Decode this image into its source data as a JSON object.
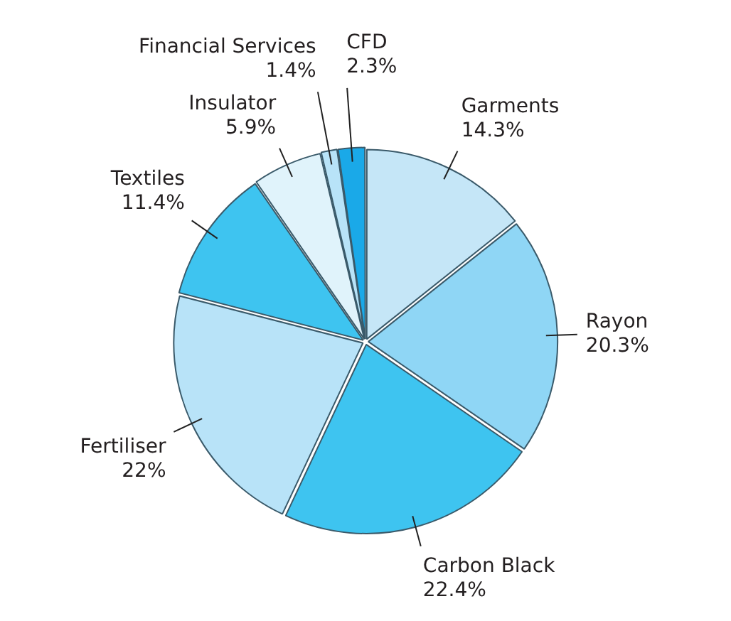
{
  "chart_data": {
    "type": "pie",
    "categories": [
      "Garments",
      "Rayon",
      "Carbon Black",
      "Fertiliser",
      "Textiles",
      "Insulator",
      "Financial Services",
      "CFD"
    ],
    "values": [
      14.3,
      20.3,
      22.4,
      22,
      11.4,
      5.9,
      1.4,
      2.3
    ],
    "value_labels": [
      "14.3%",
      "20.3%",
      "22.4%",
      "22%",
      "11.4%",
      "5.9%",
      "1.4%",
      "2.3%"
    ],
    "colors": [
      "#c5e6f7",
      "#8fd6f5",
      "#3ec4f0",
      "#b8e3f8",
      "#3ec4f0",
      "#e0f3fb",
      "#b8e3f8",
      "#1aa9e8"
    ],
    "legend": false
  }
}
